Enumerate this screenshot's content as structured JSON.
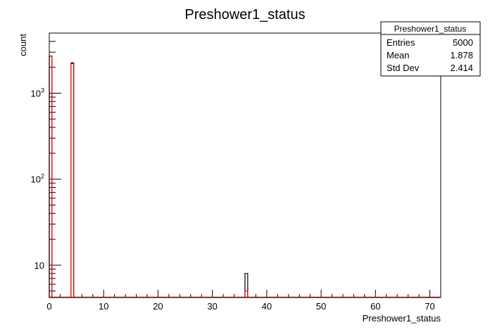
{
  "chart_data": {
    "type": "bar",
    "title": "Preshower1_status",
    "xlabel": "Preshower1_status",
    "ylabel": "count",
    "xlim": [
      0,
      72
    ],
    "ylim": [
      4.2,
      5000
    ],
    "yscale": "log",
    "grid": false,
    "x_ticks": [
      0,
      10,
      20,
      30,
      40,
      50,
      60,
      70
    ],
    "y_ticks": [
      {
        "value": 10,
        "label": "10",
        "exp": ""
      },
      {
        "value": 100,
        "label": "10",
        "exp": "2"
      },
      {
        "value": 1000,
        "label": "10",
        "exp": "3"
      }
    ],
    "series": [
      {
        "color": "#000000",
        "bins": [
          {
            "x0": 0,
            "x1": 0.5,
            "value": 2700
          },
          {
            "x0": 4,
            "x1": 4.5,
            "value": 2250
          },
          {
            "x0": 36,
            "x1": 36.5,
            "value": 8
          }
        ]
      },
      {
        "color": "#ff0000",
        "bins": [
          {
            "x0": 0,
            "x1": 0.5,
            "value": 2700
          },
          {
            "x0": 4,
            "x1": 4.5,
            "value": 2200
          },
          {
            "x0": 36,
            "x1": 36.5,
            "value": 5
          }
        ]
      }
    ],
    "stats_box": {
      "title": "Preshower1_status",
      "rows": [
        {
          "label": "Entries",
          "value": "5000"
        },
        {
          "label": "Mean",
          "value": "1.878"
        },
        {
          "label": "Std Dev",
          "value": "2.414"
        }
      ]
    }
  }
}
